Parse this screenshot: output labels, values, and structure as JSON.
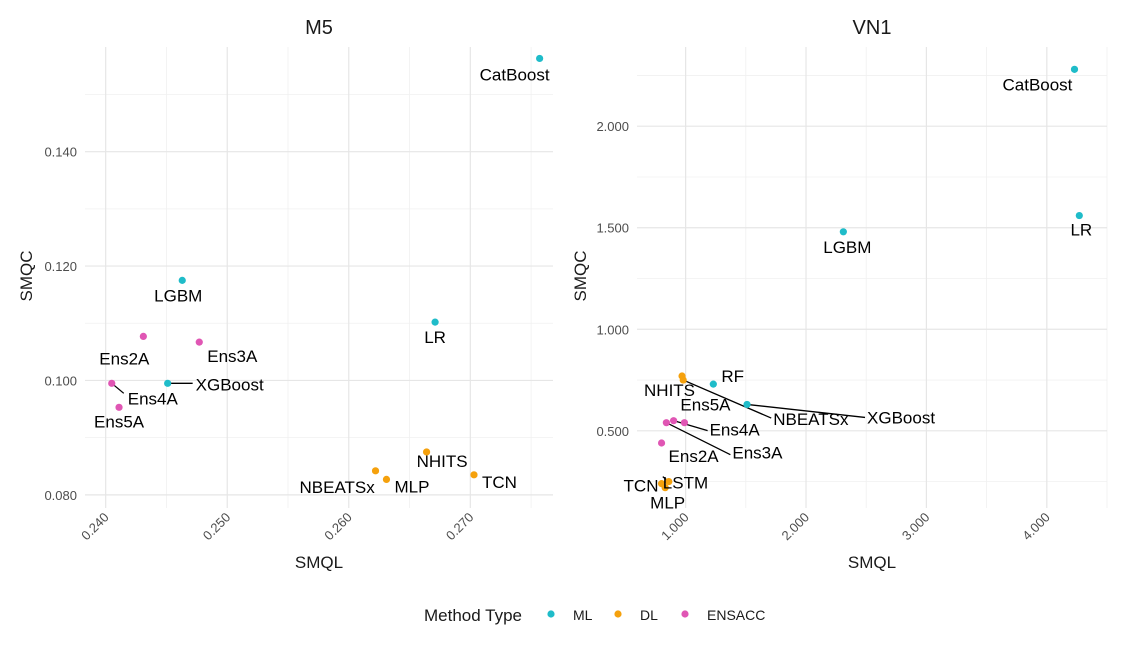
{
  "colors": {
    "ML": "#1fbcc9",
    "DL": "#f5a10d",
    "ENSACC": "#e056b4"
  },
  "legend": {
    "title": "Method Type",
    "items": [
      {
        "label": "ML",
        "group": "ML"
      },
      {
        "label": "DL",
        "group": "DL"
      },
      {
        "label": "ENSACC",
        "group": "ENSACC"
      }
    ]
  },
  "chart_data": [
    {
      "type": "scatter",
      "title": "M5",
      "xlabel": "SMQL",
      "ylabel": "SMQC",
      "xlim": [
        0.2383,
        0.2768
      ],
      "ylim": [
        0.0777,
        0.1583
      ],
      "xticks": [
        0.24,
        0.25,
        0.26,
        0.27
      ],
      "xtick_labels": [
        "0.240",
        "0.250",
        "0.260",
        "0.270"
      ],
      "yticks": [
        0.08,
        0.1,
        0.12,
        0.14
      ],
      "ytick_labels": [
        "0.080",
        "0.100",
        "0.120",
        "0.140"
      ],
      "points": [
        {
          "label": "CatBoost",
          "group": "ML",
          "x": 0.2757,
          "y": 0.1563
        },
        {
          "label": "LGBM",
          "group": "ML",
          "x": 0.2463,
          "y": 0.1175
        },
        {
          "label": "LR",
          "group": "ML",
          "x": 0.2671,
          "y": 0.1102
        },
        {
          "label": "XGBoost",
          "group": "ML",
          "x": 0.2451,
          "y": 0.0995
        },
        {
          "label": "Ens2A",
          "group": "ENSACC",
          "x": 0.2431,
          "y": 0.1077
        },
        {
          "label": "Ens3A",
          "group": "ENSACC",
          "x": 0.2477,
          "y": 0.1067
        },
        {
          "label": "Ens4A",
          "group": "ENSACC",
          "x": 0.2405,
          "y": 0.0995
        },
        {
          "label": "Ens5A",
          "group": "ENSACC",
          "x": 0.2411,
          "y": 0.0953
        },
        {
          "label": "NHITS",
          "group": "DL",
          "x": 0.2664,
          "y": 0.0875
        },
        {
          "label": "NBEATSx",
          "group": "DL",
          "x": 0.2622,
          "y": 0.0842
        },
        {
          "label": "MLP",
          "group": "DL",
          "x": 0.2631,
          "y": 0.0827
        },
        {
          "label": "TCN",
          "group": "DL",
          "x": 0.2703,
          "y": 0.0835
        }
      ]
    },
    {
      "type": "scatter",
      "title": "VN1",
      "xlabel": "SMQL",
      "ylabel": "SMQC",
      "xlim": [
        0.596,
        4.5
      ],
      "ylim": [
        0.12,
        2.39
      ],
      "xticks": [
        1,
        2,
        3,
        4
      ],
      "xtick_labels": [
        "1.000",
        "2.000",
        "3.000",
        "4.000"
      ],
      "yticks": [
        0.5,
        1,
        1.5,
        2
      ],
      "ytick_labels": [
        "0.500",
        "1.000",
        "1.500",
        "2.000"
      ],
      "points": [
        {
          "label": "CatBoost",
          "group": "ML",
          "x": 4.23,
          "y": 2.28
        },
        {
          "label": "LGBM",
          "group": "ML",
          "x": 2.31,
          "y": 1.48
        },
        {
          "label": "LR",
          "group": "ML",
          "x": 4.27,
          "y": 1.56
        },
        {
          "label": "RF",
          "group": "ML",
          "x": 1.23,
          "y": 0.73
        },
        {
          "label": "XGBoost",
          "group": "ML",
          "x": 1.51,
          "y": 0.63
        },
        {
          "label": "NHITS",
          "group": "DL",
          "x": 0.97,
          "y": 0.77
        },
        {
          "label": "NBEATSx",
          "group": "DL",
          "x": 0.98,
          "y": 0.75
        },
        {
          "label": "TCN",
          "group": "DL",
          "x": 0.8,
          "y": 0.24
        },
        {
          "label": "LSTM",
          "group": "DL",
          "x": 0.86,
          "y": 0.25
        },
        {
          "label": "MLP",
          "group": "DL",
          "x": 0.83,
          "y": 0.22
        },
        {
          "label": "Ens5A",
          "group": "ENSACC",
          "x": 0.99,
          "y": 0.54
        },
        {
          "label": "Ens4A",
          "group": "ENSACC",
          "x": 0.9,
          "y": 0.55
        },
        {
          "label": "Ens3A",
          "group": "ENSACC",
          "x": 0.84,
          "y": 0.54
        },
        {
          "label": "Ens2A",
          "group": "ENSACC",
          "x": 0.8,
          "y": 0.44
        }
      ]
    }
  ]
}
